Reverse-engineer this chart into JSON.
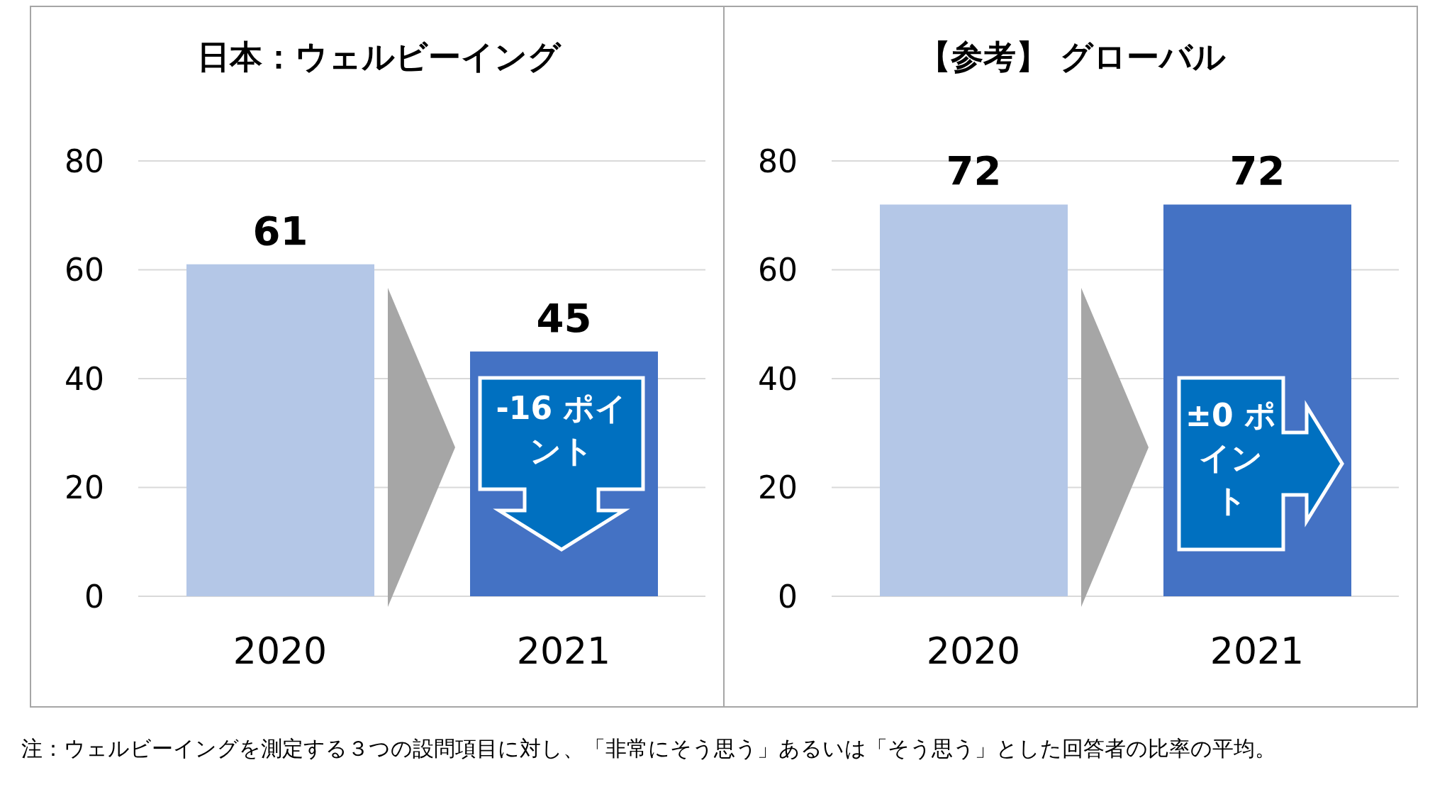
{
  "chart_data": [
    {
      "type": "bar",
      "title": "日本：ウェルビーイング",
      "categories": [
        "2020",
        "2021"
      ],
      "values": [
        61,
        45
      ],
      "colors": [
        "#b4c7e7",
        "#4472c4"
      ],
      "ylim": [
        0,
        80
      ],
      "yticks": [
        0,
        20,
        40,
        60,
        80
      ],
      "grid": "y",
      "data_labels": true,
      "annotations": [
        "-16 ポイント",
        "注：ウェルビーイングを測定する３つの設問項目に対し、「非常にそう思う」あるいは「そう思う」とした回答者の比率の平均。"
      ]
    },
    {
      "type": "bar",
      "title": "【参考】 グローバル",
      "categories": [
        "2020",
        "2021"
      ],
      "values": [
        72,
        72
      ],
      "colors": [
        "#b4c7e7",
        "#4472c4"
      ],
      "ylim": [
        0,
        80
      ],
      "yticks": [
        0,
        20,
        40,
        60,
        80
      ],
      "grid": "y",
      "data_labels": true,
      "annotations": [
        "±0 ポイント"
      ]
    }
  ]
}
